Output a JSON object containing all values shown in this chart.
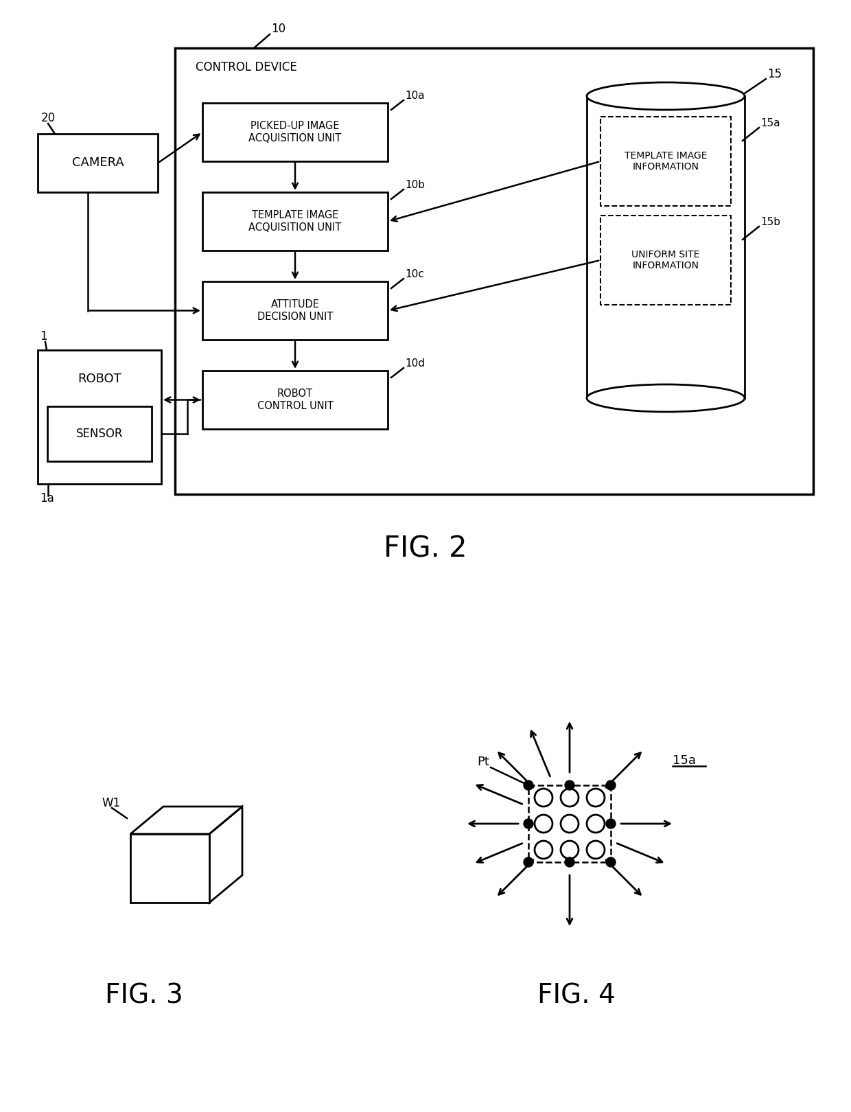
{
  "fig_width": 12.4,
  "fig_height": 16.2,
  "bg_color": "#ffffff",
  "line_color": "#000000",
  "fig2_title": "FIG. 2",
  "fig3_title": "FIG. 3",
  "fig4_title": "FIG. 4",
  "labels": {
    "control_device": "CONTROL DEVICE",
    "camera": "CAMERA",
    "robot": "ROBOT",
    "sensor": "SENSOR",
    "unit_10a": "PICKED-UP IMAGE\nACQUISITION UNIT",
    "unit_10b": "TEMPLATE IMAGE\nACQUISITION UNIT",
    "unit_10c": "ATTITUDE\nDECISION UNIT",
    "unit_10d": "ROBOT\nCONTROL UNIT",
    "db_15a": "TEMPLATE IMAGE\nINFORMATION",
    "db_15b": "UNIFORM SITE\nINFORMATION",
    "ref_10": "10",
    "ref_10a": "10a",
    "ref_10b": "10b",
    "ref_10c": "10c",
    "ref_10d": "10d",
    "ref_15": "15",
    "ref_15a": "15a",
    "ref_15b": "15b",
    "ref_20": "20",
    "ref_1": "1",
    "ref_1a": "1a",
    "ref_W1": "W1",
    "ref_Pt": "Pt",
    "ref_15a_fig4": "15a"
  }
}
